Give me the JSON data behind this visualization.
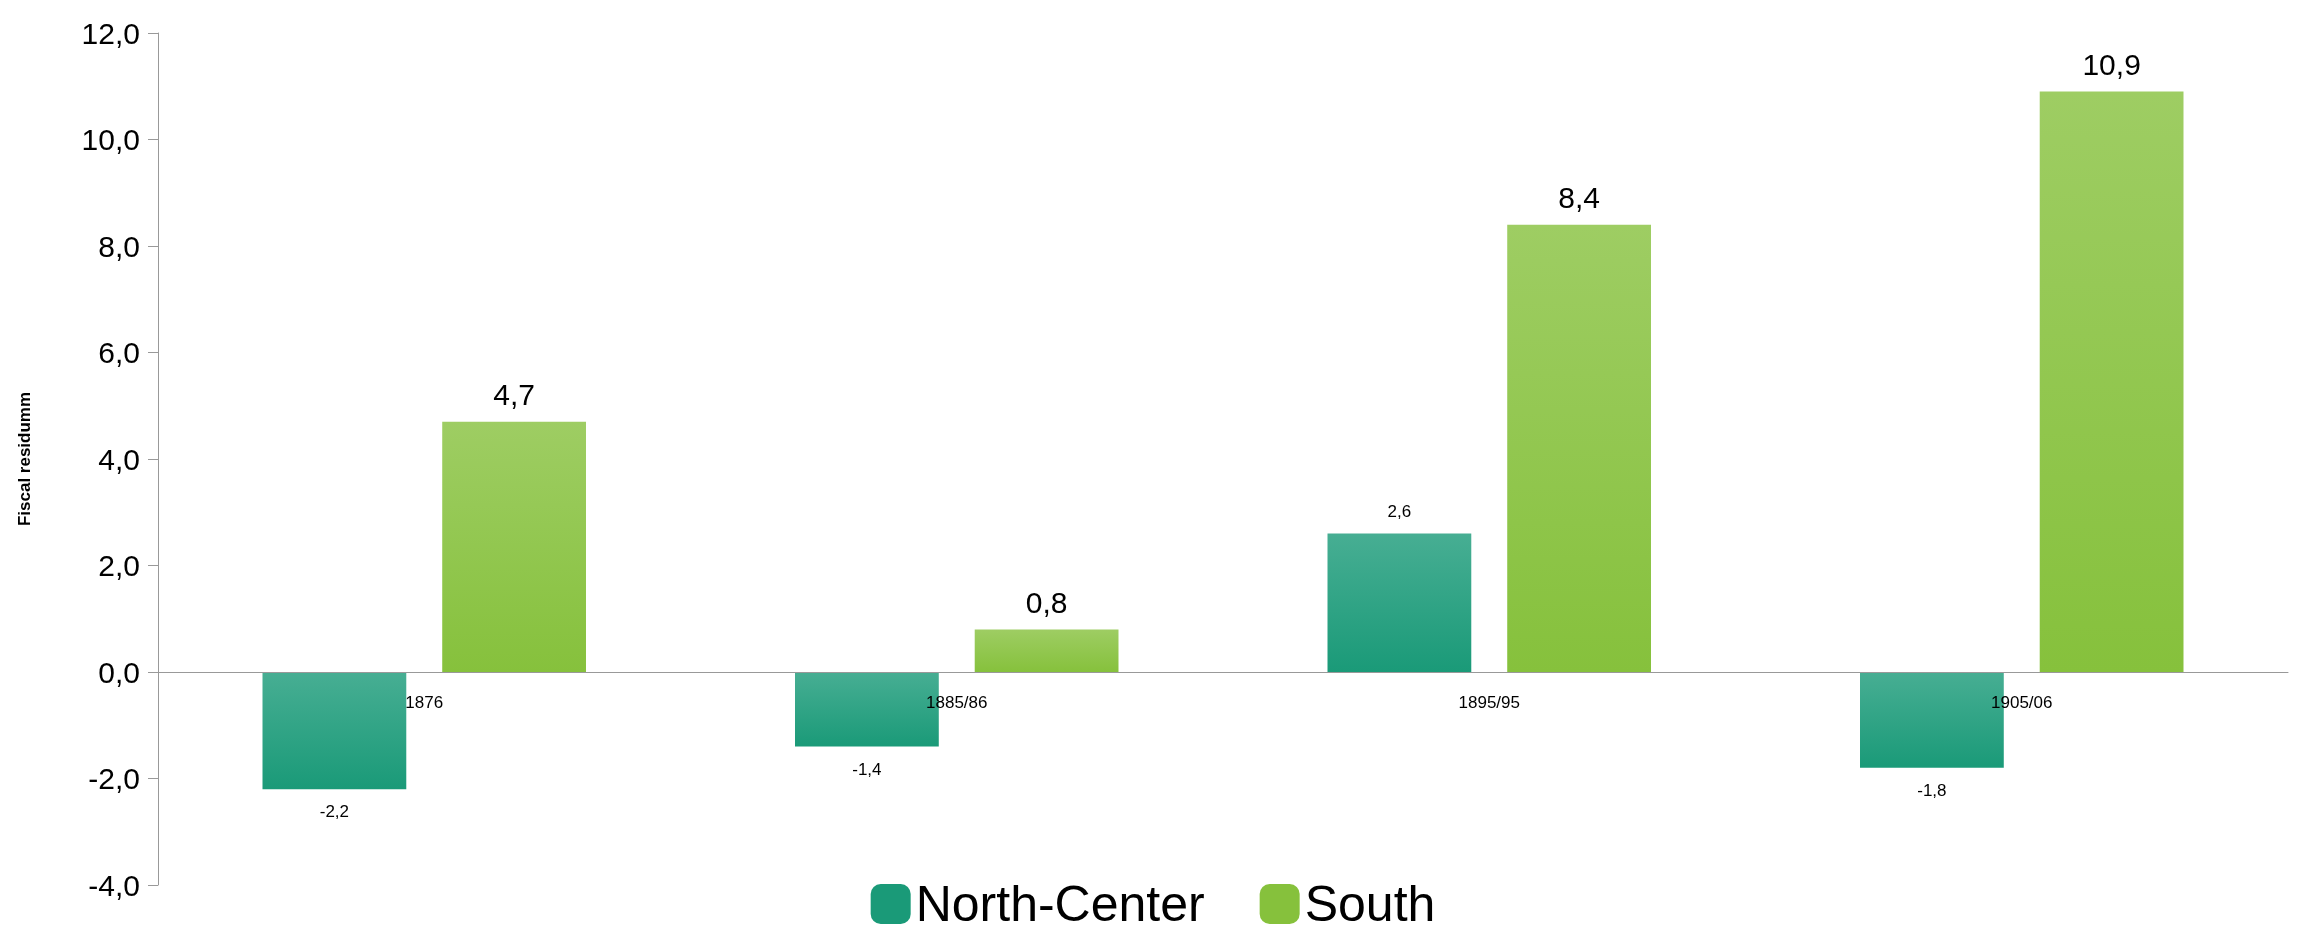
{
  "chart_data": {
    "type": "bar",
    "ylabel": "Fiscal residumm",
    "categories": [
      "1876",
      "1885/86",
      "1895/95",
      "1905/06"
    ],
    "series": [
      {
        "name": "North-Center",
        "color": "#1a9a78",
        "values": [
          -2.2,
          -1.4,
          2.6,
          -1.8
        ],
        "value_labels": [
          "-2,2",
          "-1,4",
          "2,6",
          "-1,8"
        ]
      },
      {
        "name": "South",
        "color": "#86c13c",
        "values": [
          4.7,
          0.8,
          8.4,
          10.9
        ],
        "value_labels": [
          "4,7",
          "0,8",
          "8,4",
          "10,9"
        ]
      }
    ],
    "ylim": [
      -4,
      12
    ],
    "yticks": [
      {
        "value": -4,
        "label": "-4,0"
      },
      {
        "value": -2,
        "label": "-2,0"
      },
      {
        "value": 0,
        "label": "0,0"
      },
      {
        "value": 2,
        "label": "2,0"
      },
      {
        "value": 4,
        "label": "4,0"
      },
      {
        "value": 6,
        "label": "6,0"
      },
      {
        "value": 8,
        "label": "8,0"
      },
      {
        "value": 10,
        "label": "10,0"
      },
      {
        "value": 12,
        "label": "12,0"
      }
    ],
    "grid": false,
    "legend": "bottom"
  }
}
